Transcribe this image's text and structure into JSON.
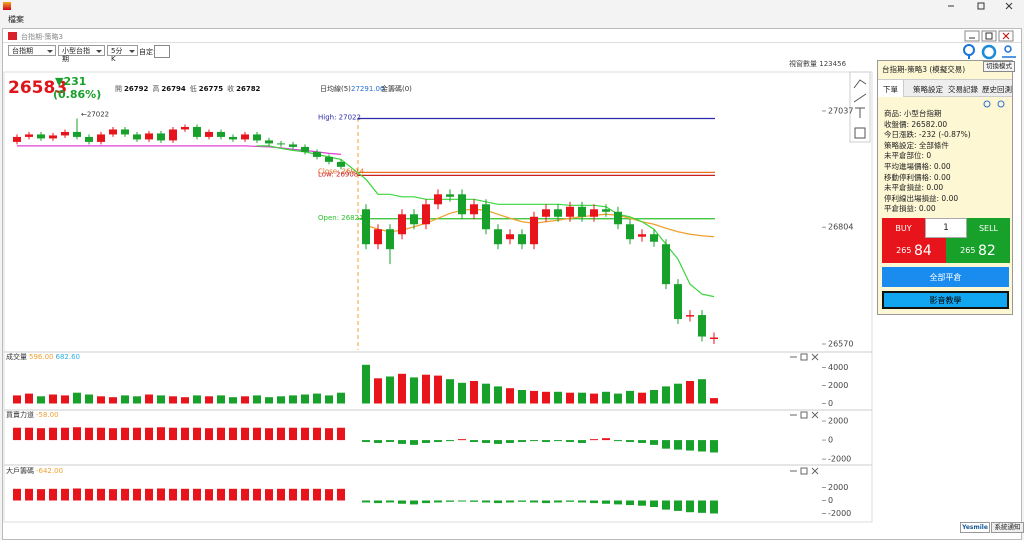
{
  "app": {
    "menu": [
      "檔案"
    ]
  },
  "window": {
    "title": "台指期-策略3"
  },
  "toolbar": {
    "selects": [
      "台指期",
      "小型台指期",
      "5分K"
    ],
    "custom_label": "自定:",
    "window_count_label": "視窗數量",
    "window_counts": [
      "1",
      "2",
      "3",
      "4",
      "5",
      "6"
    ]
  },
  "quote": {
    "last": "26583",
    "change": "▼231",
    "percent": "(0.86%)",
    "fields": [
      {
        "label": "開",
        "value": "26792"
      },
      {
        "label": "高",
        "value": "26794"
      },
      {
        "label": "低",
        "value": "26775"
      },
      {
        "label": "收",
        "value": "26782"
      }
    ],
    "ma_label": "日均線(5)",
    "ma_value": "27291.00",
    "extra": "金籌碼(0)"
  },
  "chart_data": [
    {
      "type": "candlestick",
      "up_color": "#e8141b",
      "down_color": "#17a02a",
      "open": [
        26975,
        26985,
        26990,
        26982,
        26988,
        26995,
        26985,
        26975,
        26990,
        27000,
        26990,
        26980,
        26992,
        26978,
        27000,
        27005,
        26985,
        26995,
        26985,
        26980,
        26990,
        26978,
        26972,
        26970,
        26965,
        26955,
        26945,
        26935,
        26840,
        26770,
        26800,
        26790,
        26830,
        26810,
        26850,
        26870,
        26870,
        26830,
        26850,
        26800,
        26780,
        26790,
        26770,
        26825,
        26840,
        26825,
        26845,
        26825,
        26840,
        26835,
        26810,
        26785,
        26790,
        26770,
        26690,
        26625,
        26628,
        26580
      ],
      "high": [
        26990,
        26995,
        26995,
        26993,
        27000,
        27022,
        26990,
        26995,
        27005,
        27005,
        26995,
        26997,
        26997,
        27005,
        27010,
        27010,
        27000,
        27000,
        26990,
        26995,
        26995,
        26983,
        26977,
        26975,
        26970,
        26960,
        26950,
        26940,
        26850,
        26810,
        26810,
        26840,
        26840,
        26860,
        26880,
        26880,
        26880,
        26860,
        26860,
        26810,
        26800,
        26800,
        26835,
        26850,
        26850,
        26855,
        26855,
        26850,
        26850,
        26845,
        26820,
        26800,
        26800,
        26780,
        26700,
        26638,
        26638,
        26593
      ],
      "low": [
        26970,
        26980,
        26977,
        26977,
        26983,
        26980,
        26970,
        26970,
        26985,
        26985,
        26975,
        26975,
        26973,
        26973,
        26995,
        26980,
        26980,
        26980,
        26975,
        26975,
        26973,
        26967,
        26965,
        26960,
        26950,
        26940,
        26930,
        26920,
        26760,
        26760,
        26730,
        26780,
        26800,
        26800,
        26840,
        26855,
        26820,
        26820,
        26790,
        26760,
        26770,
        26760,
        26760,
        26815,
        26815,
        26815,
        26815,
        26815,
        26825,
        26800,
        26770,
        26775,
        26765,
        26680,
        26610,
        26615,
        26575,
        26570
      ],
      "close": [
        26985,
        26990,
        26982,
        26988,
        26995,
        26985,
        26975,
        26990,
        27000,
        26990,
        26980,
        26992,
        26978,
        27000,
        27005,
        26985,
        26995,
        26985,
        26980,
        26990,
        26978,
        26972,
        26970,
        26965,
        26955,
        26945,
        26935,
        26925,
        26770,
        26800,
        26760,
        26830,
        26810,
        26850,
        26870,
        26865,
        26830,
        26850,
        26800,
        26770,
        26790,
        26770,
        26825,
        26840,
        26825,
        26845,
        26825,
        26840,
        26835,
        26810,
        26780,
        26790,
        26775,
        26690,
        26620,
        26628,
        26585,
        26583
      ],
      "lines": [
        {
          "color": "#e040d8",
          "values": [
            26967,
            26967,
            26967,
            26967,
            26967,
            26967,
            26967,
            26967,
            26967,
            26967,
            26967,
            26967,
            26967,
            26967,
            26967,
            26967,
            26967,
            26967,
            26967,
            26967,
            26966,
            26965,
            26963,
            26960,
            26958,
            26955,
            26952,
            26950,
            null,
            null,
            null,
            null,
            null,
            null,
            null,
            null,
            null,
            null,
            null,
            null,
            null,
            null,
            null,
            null,
            null,
            null,
            null,
            null,
            null,
            null,
            null,
            null,
            null,
            null,
            null,
            null,
            null,
            null
          ]
        },
        {
          "color": "#f0a030",
          "values": [
            null,
            null,
            null,
            null,
            null,
            null,
            null,
            null,
            null,
            null,
            null,
            null,
            null,
            null,
            null,
            null,
            null,
            null,
            null,
            null,
            null,
            null,
            null,
            null,
            null,
            null,
            null,
            null,
            26808,
            26800,
            26795,
            26798,
            26805,
            26812,
            26822,
            26832,
            26838,
            26840,
            26838,
            26830,
            26822,
            26815,
            26812,
            26815,
            26818,
            26822,
            26825,
            26828,
            26830,
            26828,
            26822,
            26815,
            26810,
            26802,
            26795,
            26790,
            26787,
            26785
          ]
        },
        {
          "color": "#3ad63a",
          "values": [
            null,
            null,
            null,
            null,
            null,
            null,
            null,
            null,
            null,
            null,
            null,
            null,
            null,
            null,
            null,
            null,
            null,
            null,
            null,
            null,
            26967,
            26967,
            26962,
            26958,
            26955,
            26950,
            26945,
            26940,
            26900,
            26870,
            26870,
            26865,
            26865,
            26860,
            26860,
            26860,
            26860,
            26860,
            26855,
            26850,
            26850,
            26850,
            26850,
            26850,
            26850,
            26848,
            26848,
            26848,
            26845,
            26830,
            26825,
            26815,
            26800,
            26770,
            26740,
            26690,
            26670,
            26665
          ]
        }
      ],
      "levels": [
        {
          "label": "High: 27022",
          "value": 27022,
          "color": "#2a2aa8"
        },
        {
          "label": "Close: 26914",
          "value": 26914,
          "color": "#e8701e"
        },
        {
          "label": "Low: 26908",
          "value": 26908,
          "color": "#c82020"
        },
        {
          "label": "Open: 26821",
          "value": 26821,
          "color": "#2cc02c"
        }
      ],
      "annotation": "←27022",
      "ylim": [
        26558,
        27059
      ],
      "yticks": [
        27037,
        26804,
        26570
      ]
    },
    {
      "type": "bar",
      "title": "成交量",
      "legend": [
        {
          "text": "596.00",
          "color": "#f0a030"
        },
        {
          "text": "682.60",
          "color": "#30b0e0"
        }
      ],
      "values": [
        900,
        1100,
        800,
        1000,
        900,
        1200,
        1000,
        800,
        700,
        900,
        800,
        1000,
        900,
        800,
        700,
        900,
        800,
        900,
        700,
        800,
        900,
        700,
        800,
        900,
        1000,
        1100,
        900,
        1200,
        4300,
        2800,
        3000,
        3300,
        2900,
        3200,
        3100,
        2700,
        2300,
        2500,
        2200,
        1900,
        1700,
        1500,
        1400,
        1300,
        1300,
        1200,
        1200,
        1100,
        1300,
        1100,
        1400,
        1200,
        1500,
        1900,
        2200,
        2500,
        2700,
        600
      ],
      "ylim": [
        -500,
        5500
      ],
      "yticks": [
        4000,
        2000,
        0
      ]
    },
    {
      "type": "bar",
      "title": "買賣力道",
      "legend": [
        {
          "text": "-58.00",
          "color": "#f0a030"
        }
      ],
      "values": [
        1300,
        1300,
        1250,
        1300,
        1300,
        1350,
        1300,
        1300,
        1250,
        1300,
        1300,
        1300,
        1350,
        1300,
        1300,
        1300,
        1250,
        1300,
        1300,
        1300,
        1300,
        1250,
        1300,
        1300,
        1300,
        1300,
        1250,
        1300,
        -200,
        -300,
        -200,
        -400,
        -500,
        -300,
        -200,
        -100,
        100,
        -200,
        -300,
        -400,
        -300,
        -200,
        -100,
        -200,
        -100,
        -200,
        -300,
        100,
        200,
        -100,
        -200,
        -300,
        -500,
        -900,
        -1000,
        -1100,
        -1200,
        -1300
      ],
      "ylim": [
        -2300,
        2950
      ],
      "yticks": [
        2000,
        0,
        -2000
      ]
    },
    {
      "type": "bar",
      "title": "大戶籌碼",
      "legend": [
        {
          "text": "-642.00",
          "color": "#f0a030"
        }
      ],
      "values": [
        1800,
        1800,
        1750,
        1800,
        1800,
        1850,
        1800,
        1800,
        1750,
        1800,
        1800,
        1800,
        1850,
        1800,
        1800,
        1800,
        1750,
        1800,
        1800,
        1800,
        1800,
        1750,
        1800,
        1800,
        1800,
        1800,
        1750,
        1800,
        -300,
        -400,
        -300,
        -500,
        -600,
        -400,
        -300,
        -200,
        -100,
        -200,
        -300,
        -400,
        -300,
        -200,
        -300,
        -400,
        -300,
        -200,
        -300,
        -400,
        -500,
        -600,
        -700,
        -800,
        -1000,
        -1400,
        -1600,
        -1800,
        -1900,
        -2000
      ],
      "ylim": [
        -3000,
        5000
      ],
      "yticks": [
        2000,
        0,
        -2000
      ]
    }
  ],
  "panel": {
    "title": "台指期-策略3 (模擬交易)",
    "mode_button": "切換模式",
    "tabs": [
      "下單",
      "策略設定",
      "交易記錄",
      "歷史回測"
    ],
    "info": [
      "商品: 小型台指期",
      "收盤價: 26582.00",
      "今日漲跌: -232 (-0.87%)",
      "策略設定: 全部條件",
      "未平倉部位: 0",
      "平均進場價格: 0.00",
      "移動停利價格: 0.00",
      "未平倉損益: 0.00",
      "停利線出場損益: 0.00",
      "平倉損益: 0.00"
    ],
    "buy": "BUY",
    "qty": "1",
    "sell": "SELL",
    "bid_prefix": "265",
    "bid": "84",
    "ask_prefix": "265",
    "ask": "82",
    "close_all": "全部平倉",
    "tutorial": "影音教學"
  },
  "footer": {
    "logo": "Yesmile",
    "notice": "系統通知"
  }
}
